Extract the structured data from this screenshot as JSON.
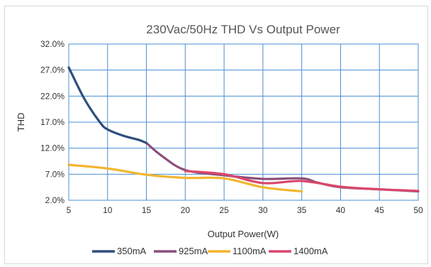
{
  "chart_data": {
    "type": "line",
    "title": "230Vac/50Hz THD Vs Output Power",
    "xlabel": "Output Power(W)",
    "ylabel": "THD",
    "xlim": [
      5,
      50
    ],
    "ylim": [
      2.0,
      32.0
    ],
    "x_ticks": [
      "5",
      "10",
      "15",
      "20",
      "25",
      "30",
      "35",
      "40",
      "45",
      "50"
    ],
    "y_ticks": [
      "32.0%",
      "27.0%",
      "22.0%",
      "17.0%",
      "12.0%",
      "7.0%",
      "2.0%"
    ],
    "grid": true,
    "legend_position": "bottom",
    "series": [
      {
        "name": "350mA",
        "color": "#2e4f7c",
        "x": [
          5,
          7,
          9,
          10,
          12,
          14,
          15
        ],
        "y": [
          27.5,
          21.5,
          17.0,
          15.6,
          14.4,
          13.6,
          13.0
        ]
      },
      {
        "name": "925mA",
        "color": "#8a4f79",
        "x": [
          15,
          17,
          20,
          25,
          30,
          35,
          37,
          40,
          45,
          50
        ],
        "y": [
          13.0,
          10.5,
          7.8,
          6.8,
          6.1,
          6.2,
          5.4,
          4.5,
          4.1,
          3.7
        ]
      },
      {
        "name": "1100mA",
        "color": "#f2b630",
        "x": [
          5,
          10,
          15,
          20,
          25,
          30,
          35
        ],
        "y": [
          8.8,
          8.1,
          6.9,
          6.3,
          6.2,
          4.5,
          3.7
        ]
      },
      {
        "name": "1400mA",
        "color": "#d9476b",
        "x": [
          20,
          25,
          30,
          35,
          40,
          45,
          50
        ],
        "y": [
          7.6,
          7.0,
          5.3,
          5.7,
          4.6,
          4.1,
          3.8
        ]
      }
    ]
  }
}
